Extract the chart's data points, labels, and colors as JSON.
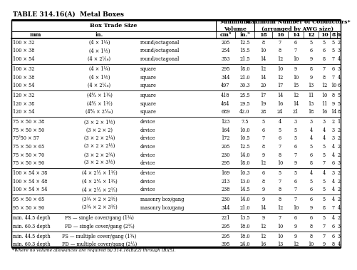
{
  "title": "TABLE 314.16(A)  Metal Boxes",
  "rows": [
    [
      "100 × 32",
      "(4 × 1¼)",
      "round/octagonal",
      "205",
      "12.5",
      "8",
      "7",
      "6",
      "5",
      "5",
      "5",
      "2"
    ],
    [
      "100 × 38",
      "(4 × 1½)",
      "round/octagonal",
      "254",
      "15.5",
      "10",
      "8",
      "7",
      "6",
      "6",
      "5",
      "3"
    ],
    [
      "100 × 54",
      "(4 × 2¹⁄₁₆)",
      "round/octagonal",
      "353",
      "21.5",
      "14",
      "12",
      "10",
      "9",
      "8",
      "7",
      "4"
    ],
    [
      "100 × 32",
      "(4 × 1¼)",
      "square",
      "295",
      "18.0",
      "12",
      "10",
      "9",
      "8",
      "7",
      "6",
      "3"
    ],
    [
      "100 × 38",
      "(4 × 1½)",
      "square",
      "344",
      "21.0",
      "14",
      "12",
      "10",
      "9",
      "8",
      "7",
      "4"
    ],
    [
      "100 × 54",
      "(4 × 2¹⁄₁₆)",
      "square",
      "497",
      "30.3",
      "20",
      "17",
      "15",
      "13",
      "12",
      "10",
      "6"
    ],
    [
      "120 × 32",
      "(4⁶⁄₃ × 1¼)",
      "square",
      "418",
      "25.5",
      "17",
      "14",
      "12",
      "11",
      "10",
      "8",
      "5"
    ],
    [
      "120 × 38",
      "(4⁶⁄₃ × 1½)",
      "square",
      "484",
      "29.5",
      "19",
      "16",
      "14",
      "13",
      "11",
      "9",
      "5"
    ],
    [
      "120 × 54",
      "(4⁶⁄₃ × 2¹⁄₁₆)",
      "square",
      "689",
      "42.0",
      "28",
      "24",
      "21",
      "18",
      "16",
      "14",
      "8"
    ],
    [
      "75 × 50 × 38",
      "(3 × 2 × 1½)",
      "device",
      "123",
      "7.5",
      "5",
      "4",
      "3",
      "3",
      "3",
      "2",
      "1"
    ],
    [
      "75 × 50 × 50",
      "(3 × 2 × 2)",
      "device",
      "164",
      "10.0",
      "6",
      "5",
      "5",
      "4",
      "4",
      "3",
      "2"
    ],
    [
      "75³50 × 57",
      "(3 × 2 × 2¼)",
      "device",
      "172",
      "10.5",
      "7",
      "6",
      "5",
      "4",
      "4",
      "3",
      "2"
    ],
    [
      "75 × 50 × 65",
      "(3 × 2 × 2½)",
      "device",
      "205",
      "12.5",
      "8",
      "7",
      "6",
      "5",
      "5",
      "4",
      "2"
    ],
    [
      "75 × 50 × 70",
      "(3 × 2 × 2¾)",
      "device",
      "230",
      "14.0",
      "9",
      "8",
      "7",
      "6",
      "5",
      "4",
      "2"
    ],
    [
      "75 × 50 × 90",
      "(3 × 2 × 3½)",
      "device",
      "295",
      "18.0",
      "12",
      "10",
      "9",
      "8",
      "7",
      "6",
      "3"
    ],
    [
      "100 × 54 × 38",
      "(4 × 2¹⁄₃ × 1½)",
      "device",
      "169",
      "10.3",
      "6",
      "5",
      "5",
      "4",
      "4",
      "3",
      "2"
    ],
    [
      "100 × 54 × 48",
      "(4 × 2¹⁄₃ × 1¾)",
      "device",
      "213",
      "13.0",
      "8",
      "7",
      "6",
      "5",
      "5",
      "4",
      "2"
    ],
    [
      "100 × 54 × 54",
      "(4 × 2¹⁄₃ × 2¹⁄₃)",
      "device",
      "238",
      "14.5",
      "9",
      "8",
      "7",
      "6",
      "5",
      "4",
      "2"
    ],
    [
      "95 × 50 × 65",
      "(3¾ × 2 × 2½)",
      "masonry box/gang",
      "230",
      "14.0",
      "9",
      "8",
      "7",
      "6",
      "5",
      "4",
      "2"
    ],
    [
      "95 × 50 × 90",
      "(3¾ × 2 × 3½)",
      "masonry box/gang",
      "344",
      "21.0",
      "14",
      "12",
      "10",
      "9",
      "8",
      "7",
      "4"
    ],
    [
      "min. 44.5 depth",
      "FS — single cover/gang (1¾)",
      "",
      "221",
      "13.5",
      "9",
      "7",
      "6",
      "6",
      "5",
      "4",
      "2"
    ],
    [
      "min. 60.3 depth",
      "FD — single cover/gang (2¹⁄₃)",
      "",
      "295",
      "18.0",
      "12",
      "10",
      "9",
      "8",
      "7",
      "6",
      "3"
    ],
    [
      "min. 44.5 depth",
      "FS — multiple cover/gang (1¾)",
      "",
      "295",
      "18.0",
      "12",
      "10",
      "9",
      "8",
      "7",
      "6",
      "3"
    ],
    [
      "min. 60.3 depth",
      "FD — multiple cover/gang (2¹⁄₃)",
      "",
      "395",
      "24.0",
      "16",
      "13",
      "12",
      "10",
      "9",
      "8",
      "4"
    ]
  ],
  "group_separators_after": [
    2,
    5,
    8,
    14,
    17,
    19,
    21
  ],
  "footnote": "*Where no volume allowances are required by 314.16(B)(2) through (B)(5).",
  "bg_color": "#f5f5f0",
  "header_bg": "#dcdcdc"
}
